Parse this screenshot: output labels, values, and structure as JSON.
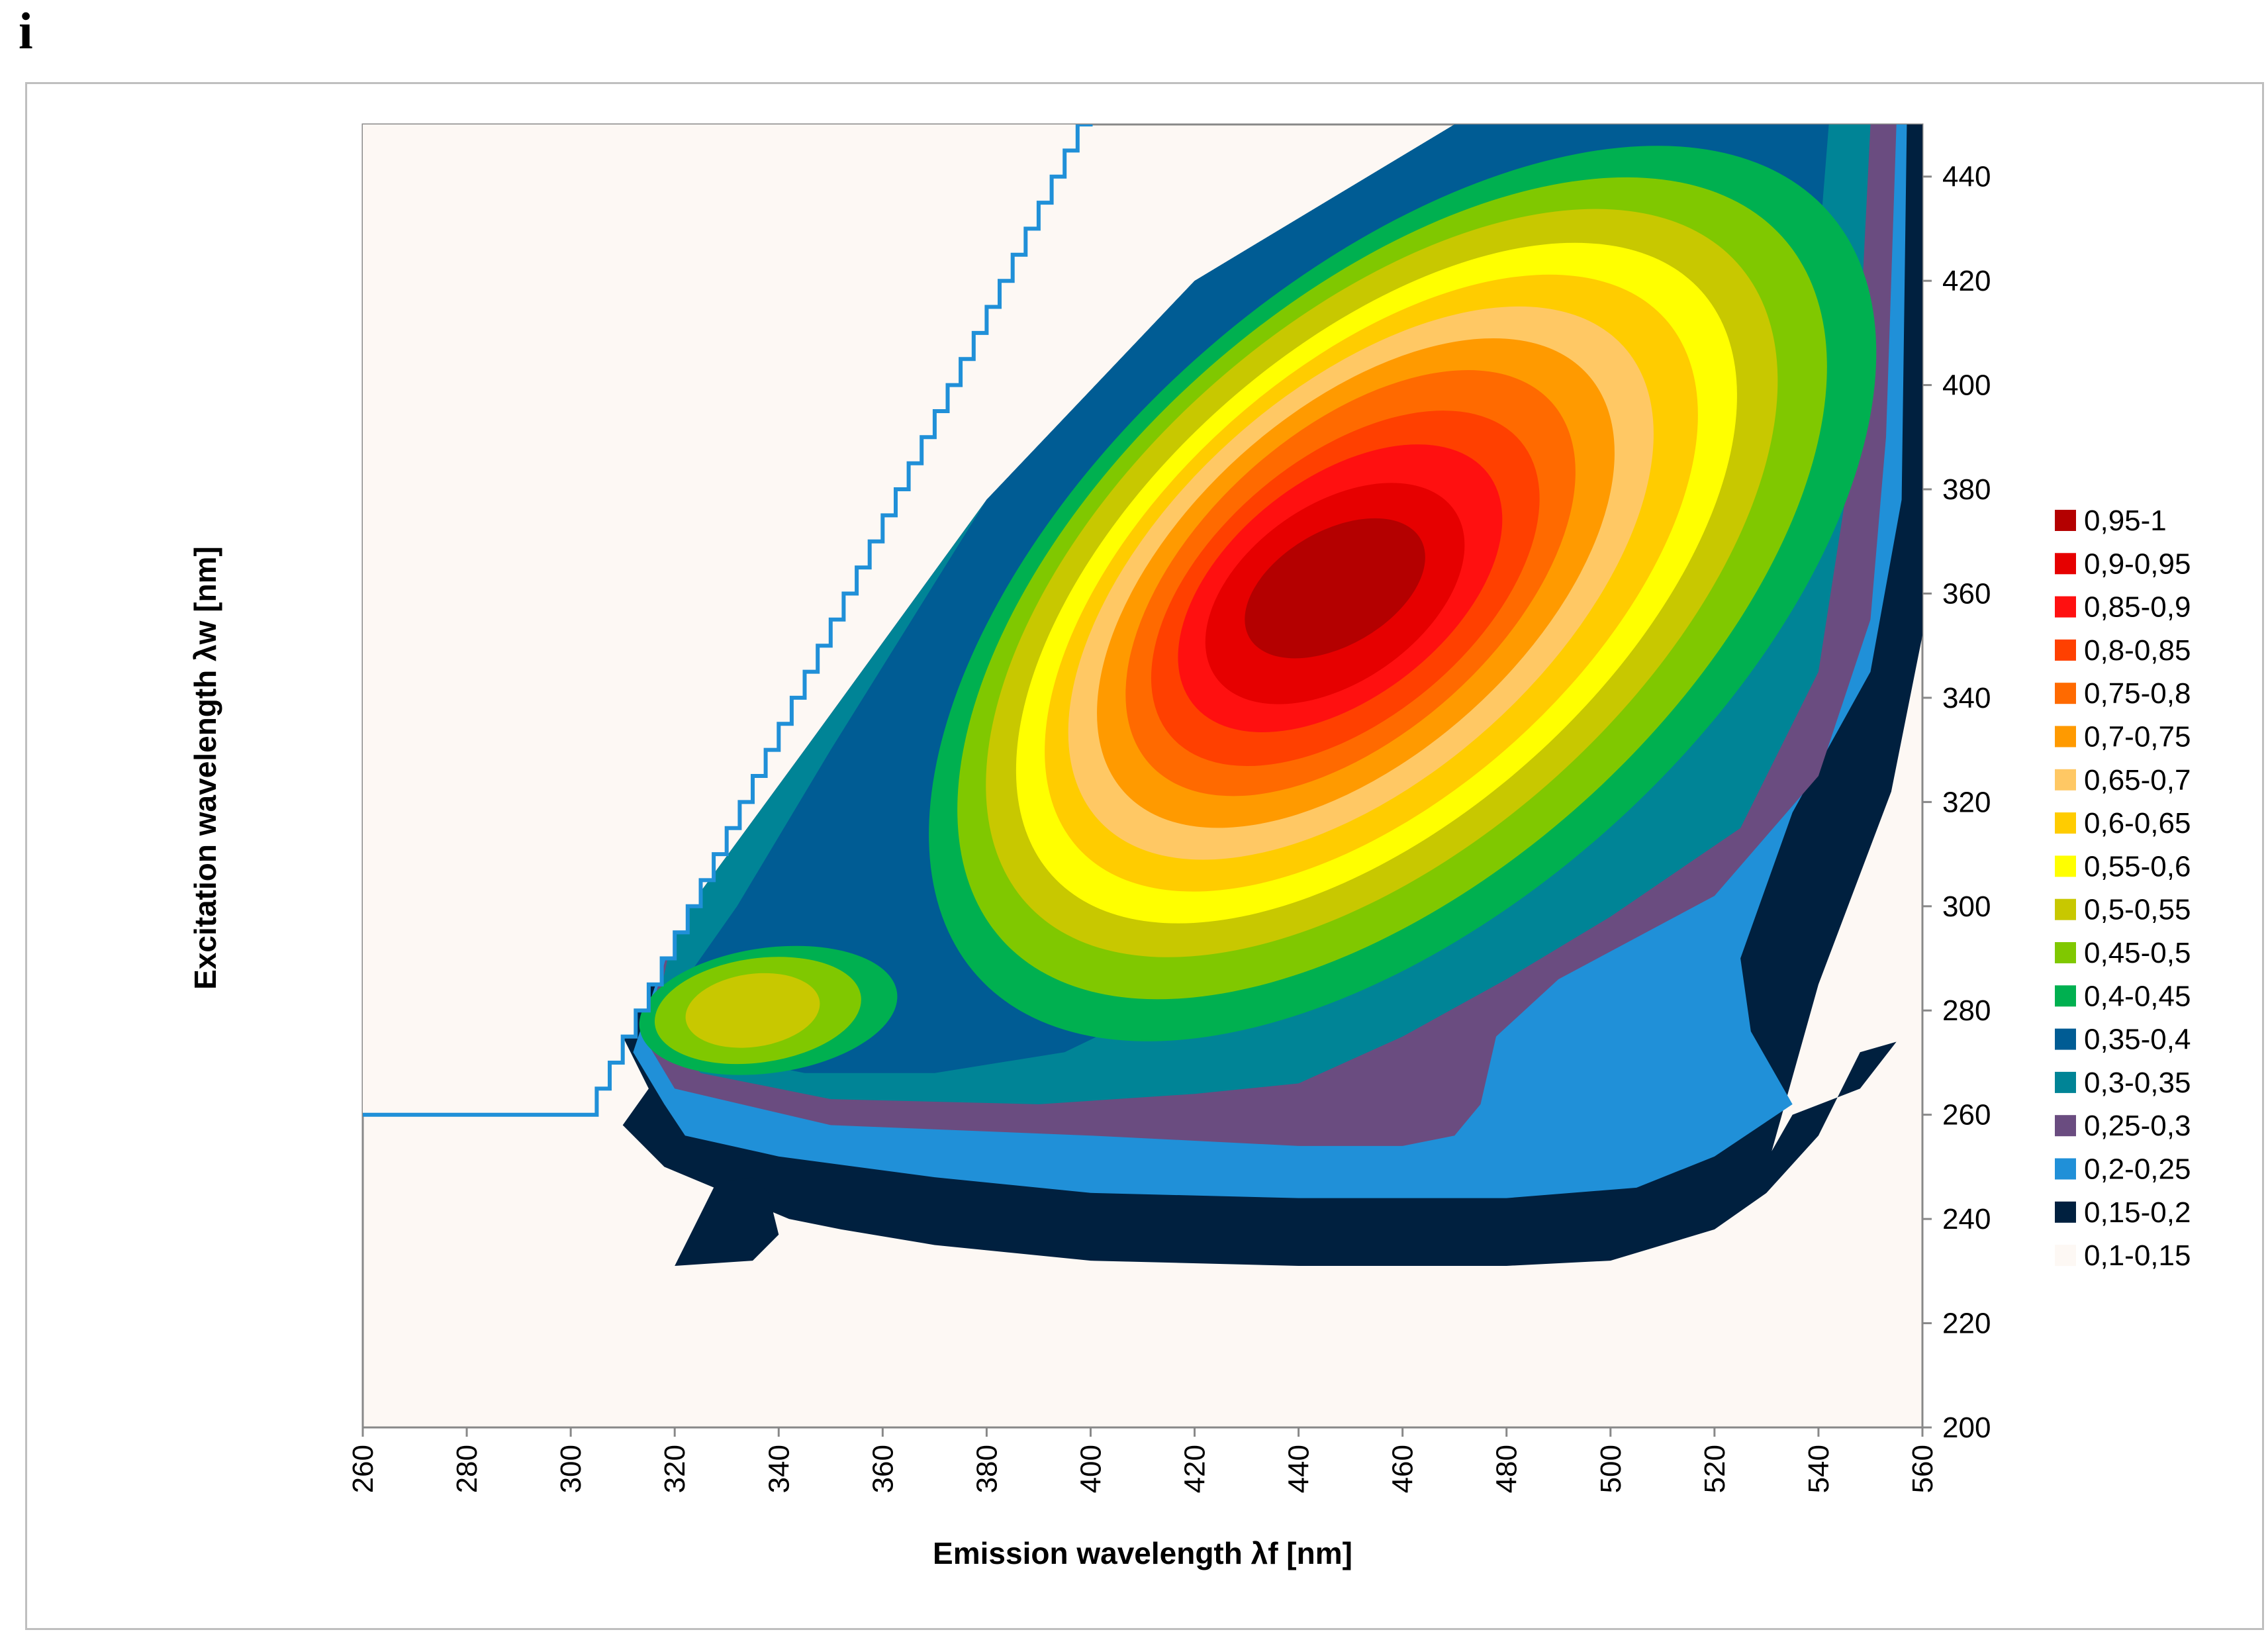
{
  "panel_label": "i",
  "chart_data": {
    "type": "contour",
    "title": "",
    "xlabel": "Emission wavelength λf [nm]",
    "ylabel": "Excitation wavelength λw [nm]",
    "xlim": [
      260,
      560
    ],
    "ylim": [
      200,
      450
    ],
    "x_ticks": [
      "260",
      "280",
      "300",
      "320",
      "340",
      "360",
      "380",
      "400",
      "420",
      "440",
      "460",
      "480",
      "500",
      "520",
      "540",
      "560"
    ],
    "y_ticks": [
      "200",
      "220",
      "240",
      "260",
      "280",
      "300",
      "320",
      "340",
      "360",
      "380",
      "400",
      "420",
      "440"
    ],
    "y_axis_position": "right",
    "legend_position": "right",
    "levels": [
      {
        "label": "0,95-1",
        "color": "#b40000"
      },
      {
        "label": "0,9-0,95",
        "color": "#e60000"
      },
      {
        "label": "0,85-0,9",
        "color": "#ff1010"
      },
      {
        "label": "0,8-0,85",
        "color": "#ff4000"
      },
      {
        "label": "0,75-0,8",
        "color": "#ff6a00"
      },
      {
        "label": "0,7-0,75",
        "color": "#ff9a00"
      },
      {
        "label": "0,65-0,7",
        "color": "#ffc864"
      },
      {
        "label": "0,6-0,65",
        "color": "#ffcc00"
      },
      {
        "label": "0,55-0,6",
        "color": "#ffff00"
      },
      {
        "label": "0,5-0,55",
        "color": "#c8c800"
      },
      {
        "label": "0,45-0,5",
        "color": "#80c800"
      },
      {
        "label": "0,4-0,45",
        "color": "#00b050"
      },
      {
        "label": "0,35-0,4",
        "color": "#005c94"
      },
      {
        "label": "0,3-0,35",
        "color": "#008496"
      },
      {
        "label": "0,25-0,3",
        "color": "#6a4c80"
      },
      {
        "label": "0,2-0,25",
        "color": "#2090d8"
      },
      {
        "label": "0,15-0,2",
        "color": "#00203f"
      },
      {
        "label": "0,1-0,15",
        "color": "#fdf8f4"
      }
    ],
    "peaks": [
      {
        "x": 448,
        "y": 360,
        "level": "0,95-1"
      },
      {
        "x": 335,
        "y": 280,
        "level": "0,5-0,55"
      }
    ]
  }
}
